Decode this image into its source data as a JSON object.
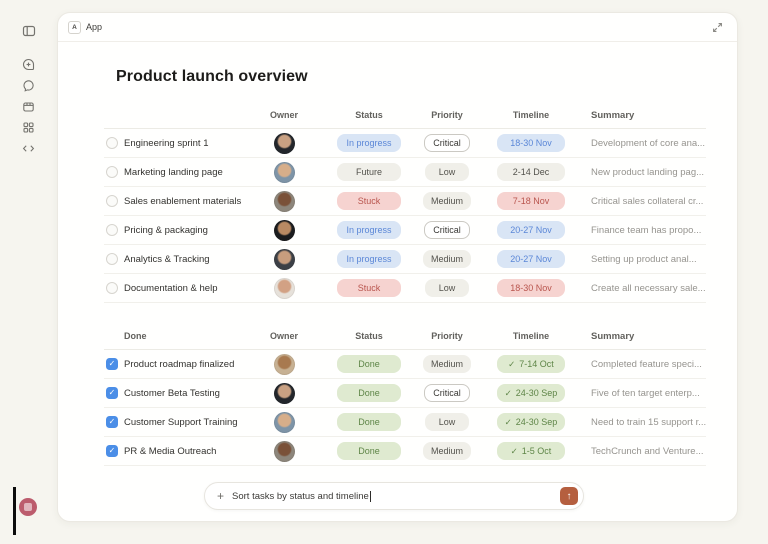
{
  "window": {
    "topbar": {
      "app_badge": "A",
      "app_label": "App",
      "expand_icon": "expand-icon"
    },
    "title": "Product launch overview"
  },
  "sidebar": {
    "icons": [
      "sidebar-toggle",
      "new-chat",
      "chat-bubble",
      "box",
      "apps-grid",
      "code"
    ],
    "logo": "app-logo"
  },
  "colors": {
    "background": "#f6f5ef",
    "window": "#fffffe",
    "status_blue_bg": "#d9e5f5",
    "status_blue_text": "#5b87d7",
    "neutral_bg": "#f0efe9",
    "neutral_text": "#53524c",
    "red_bg": "#f6d3d0",
    "red_text": "#b9554e",
    "green_bg": "#dfead0",
    "green_text": "#5e8547",
    "checkbox_checked": "#4b8ee7",
    "send_button": "#b55f3f",
    "logo": "#bc5c6d"
  },
  "tables": [
    {
      "name_header": "",
      "columns": [
        "Owner",
        "Status",
        "Priority",
        "Timeline",
        "Summary"
      ],
      "rows": [
        {
          "name": "Engineering sprint 1",
          "checked": false,
          "avatar": {
            "bg": "#23262b",
            "face": "#c9a183"
          },
          "status": {
            "label": "In progress",
            "variant": "blue"
          },
          "priority": {
            "label": "Critical",
            "variant": "outline"
          },
          "timeline": {
            "label": "18-30 Nov",
            "variant": "blue",
            "check": false
          },
          "summary": "Development of core ana..."
        },
        {
          "name": "Marketing landing page",
          "checked": false,
          "avatar": {
            "bg": "#7e94a7",
            "face": "#d7ae8a"
          },
          "status": {
            "label": "Future",
            "variant": "beige"
          },
          "priority": {
            "label": "Low",
            "variant": "beige"
          },
          "timeline": {
            "label": "2-14 Dec",
            "variant": "beige",
            "check": false
          },
          "summary": "New product landing pag..."
        },
        {
          "name": "Sales enablement materials",
          "checked": false,
          "avatar": {
            "bg": "#8d867b",
            "face": "#7a5138"
          },
          "status": {
            "label": "Stuck",
            "variant": "red"
          },
          "priority": {
            "label": "Medium",
            "variant": "beige"
          },
          "timeline": {
            "label": "7-18 Nov",
            "variant": "red",
            "check": false
          },
          "summary": "Critical sales collateral cr..."
        },
        {
          "name": "Pricing & packaging",
          "checked": false,
          "avatar": {
            "bg": "#1b1c1e",
            "face": "#b98a63"
          },
          "status": {
            "label": "In progress",
            "variant": "blue"
          },
          "priority": {
            "label": "Critical",
            "variant": "outline"
          },
          "timeline": {
            "label": "20-27 Nov",
            "variant": "blue",
            "check": false
          },
          "summary": "Finance team has propo..."
        },
        {
          "name": "Analytics & Tracking",
          "checked": false,
          "avatar": {
            "bg": "#3c4046",
            "face": "#c79d7e"
          },
          "status": {
            "label": "In progress",
            "variant": "blue"
          },
          "priority": {
            "label": "Medium",
            "variant": "beige"
          },
          "timeline": {
            "label": "20-27 Nov",
            "variant": "blue",
            "check": false
          },
          "summary": "Setting up product anal..."
        },
        {
          "name": "Documentation & help",
          "checked": false,
          "avatar": {
            "bg": "#e6e1da",
            "face": "#d2a184"
          },
          "status": {
            "label": "Stuck",
            "variant": "red"
          },
          "priority": {
            "label": "Low",
            "variant": "beige"
          },
          "timeline": {
            "label": "18-30 Nov",
            "variant": "red",
            "check": false
          },
          "summary": "Create all necessary sale..."
        }
      ]
    },
    {
      "name_header": "Done",
      "columns": [
        "Owner",
        "Status",
        "Priority",
        "Timeline",
        "Summary"
      ],
      "rows": [
        {
          "name": "Product roadmap finalized",
          "checked": true,
          "avatar": {
            "bg": "#c7b193",
            "face": "#a8794f"
          },
          "status": {
            "label": "Done",
            "variant": "green"
          },
          "priority": {
            "label": "Medium",
            "variant": "beige"
          },
          "timeline": {
            "label": "7-14 Oct",
            "variant": "green",
            "check": true
          },
          "summary": "Completed feature speci..."
        },
        {
          "name": "Customer Beta Testing",
          "checked": true,
          "avatar": {
            "bg": "#23262b",
            "face": "#c9a183"
          },
          "status": {
            "label": "Done",
            "variant": "green"
          },
          "priority": {
            "label": "Critical",
            "variant": "outline"
          },
          "timeline": {
            "label": "24-30 Sep",
            "variant": "green",
            "check": true
          },
          "summary": "Five of ten target enterp..."
        },
        {
          "name": "Customer Support Training",
          "checked": true,
          "avatar": {
            "bg": "#7e94a7",
            "face": "#d7ae8a"
          },
          "status": {
            "label": "Done",
            "variant": "green"
          },
          "priority": {
            "label": "Low",
            "variant": "beige"
          },
          "timeline": {
            "label": "24-30 Sep",
            "variant": "green",
            "check": true
          },
          "summary": "Need to train 15 support r..."
        },
        {
          "name": "PR & Media Outreach",
          "checked": true,
          "avatar": {
            "bg": "#8d867b",
            "face": "#7a5138"
          },
          "status": {
            "label": "Done",
            "variant": "green"
          },
          "priority": {
            "label": "Medium",
            "variant": "beige"
          },
          "timeline": {
            "label": "1-5 Oct",
            "variant": "green",
            "check": true
          },
          "summary": "TechCrunch and Venture..."
        }
      ]
    }
  ],
  "composer": {
    "plus": "+",
    "value": "Sort tasks by status and timeline",
    "send_icon": "arrow-up-icon",
    "send_glyph": "↑"
  }
}
